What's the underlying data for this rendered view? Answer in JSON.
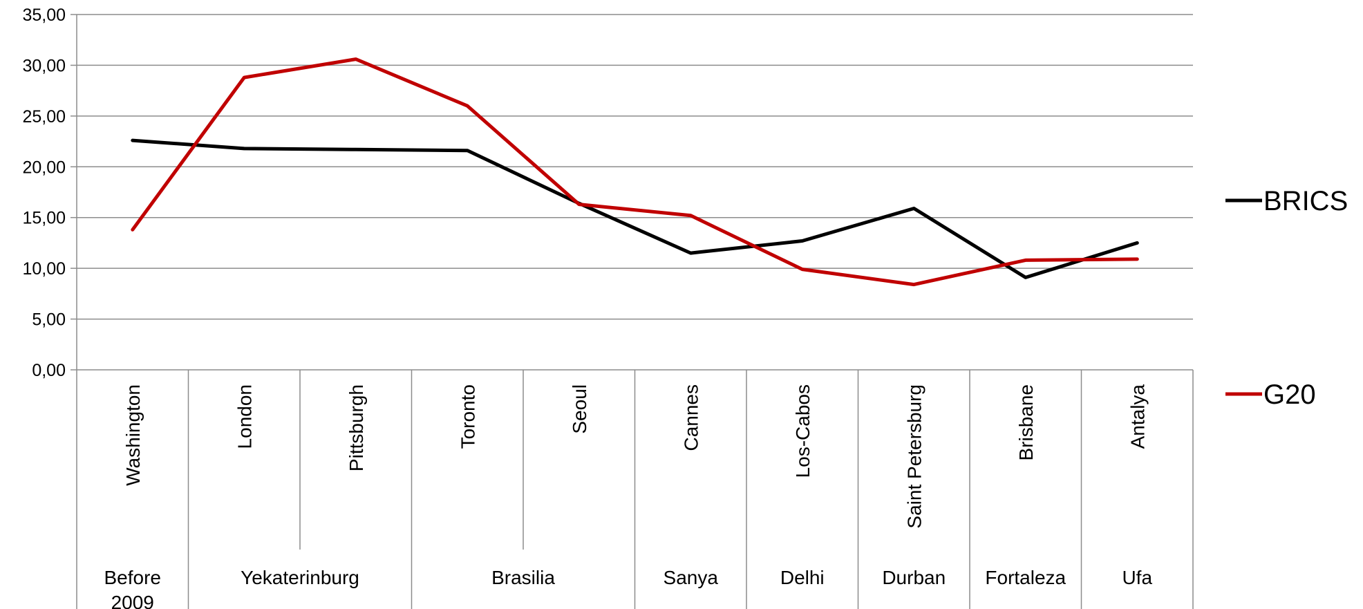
{
  "chart_data": {
    "type": "line",
    "title": "",
    "xlabel": "",
    "ylabel": "",
    "ylim": [
      0,
      35
    ],
    "ytick_labels": [
      "0,00",
      "5,00",
      "10,00",
      "15,00",
      "20,00",
      "25,00",
      "30,00",
      "35,00"
    ],
    "grid": "horizontal",
    "legend_position": "right",
    "categories": [
      "Washington",
      "London",
      "Pittsburgh",
      "Toronto",
      "Seoul",
      "Cannes",
      "Los-Cabos",
      "Saint Petersburg",
      "Brisbane",
      "Antalya"
    ],
    "groups": [
      {
        "label": "Before 2009",
        "span": 1
      },
      {
        "label": "Yekaterinburg",
        "span": 2
      },
      {
        "label": "Brasilia",
        "span": 2
      },
      {
        "label": "Sanya",
        "span": 1
      },
      {
        "label": "Delhi",
        "span": 1
      },
      {
        "label": "Durban",
        "span": 1
      },
      {
        "label": "Fortaleza",
        "span": 1
      },
      {
        "label": "Ufa",
        "span": 1
      }
    ],
    "series": [
      {
        "name": "BRICS",
        "color": "#000000",
        "values": [
          22.6,
          21.8,
          21.7,
          21.6,
          16.4,
          11.5,
          12.7,
          15.9,
          9.1,
          12.5
        ]
      },
      {
        "name": "G20",
        "color": "#c00000",
        "values": [
          13.8,
          28.8,
          30.6,
          26.0,
          16.3,
          15.2,
          9.9,
          8.4,
          10.8,
          10.9
        ]
      }
    ]
  }
}
